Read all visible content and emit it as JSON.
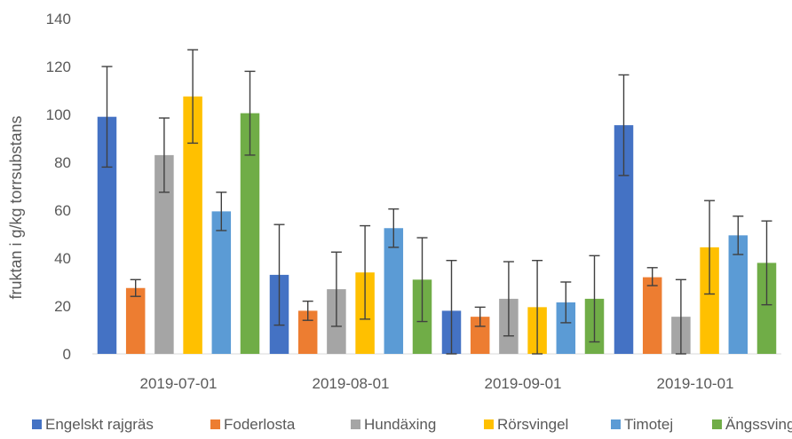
{
  "chart_data": {
    "type": "bar",
    "title": "",
    "xlabel": "",
    "ylabel": "fruktan i g/kg torrsubstans",
    "ylim": [
      0,
      140
    ],
    "yticks": [
      0,
      20,
      40,
      60,
      80,
      100,
      120,
      140
    ],
    "grid": false,
    "legend_position": "bottom",
    "categories": [
      "2019-07-01",
      "2019-08-01",
      "2019-09-01",
      "2019-10-01"
    ],
    "series": [
      {
        "name": "Engelskt rajgräs",
        "color": "#4472C4",
        "values": [
          99,
          33,
          18,
          95.5
        ],
        "error_low": [
          78,
          12,
          0,
          74.5
        ],
        "error_high": [
          120,
          54,
          39,
          116.5
        ]
      },
      {
        "name": "Foderlosta",
        "color": "#ED7D31",
        "values": [
          27.5,
          18,
          15.5,
          32
        ],
        "error_low": [
          24,
          14,
          11.5,
          28.5
        ],
        "error_high": [
          31,
          22,
          19.5,
          36
        ]
      },
      {
        "name": "Hundäxing",
        "color": "#A5A5A5",
        "values": [
          83,
          27,
          23,
          15.5
        ],
        "error_low": [
          67.5,
          11.5,
          7.5,
          0
        ],
        "error_high": [
          98.5,
          42.5,
          38.5,
          31
        ]
      },
      {
        "name": "Rörsvingel",
        "color": "#FFC000",
        "values": [
          107.5,
          34,
          19.5,
          44.5
        ],
        "error_low": [
          88,
          14.5,
          0,
          25
        ],
        "error_high": [
          127,
          53.5,
          39,
          64
        ]
      },
      {
        "name": "Timotej",
        "color": "#5B9BD5",
        "values": [
          59.5,
          52.5,
          21.5,
          49.5
        ],
        "error_low": [
          51.5,
          44.5,
          13,
          41.5
        ],
        "error_high": [
          67.5,
          60.5,
          30,
          57.5
        ]
      },
      {
        "name": "Ängssvingel",
        "color": "#70AD47",
        "values": [
          100.5,
          31,
          23,
          38
        ],
        "error_low": [
          83,
          13.5,
          5,
          20.5
        ],
        "error_high": [
          118,
          48.5,
          41,
          55.5
        ]
      }
    ]
  }
}
